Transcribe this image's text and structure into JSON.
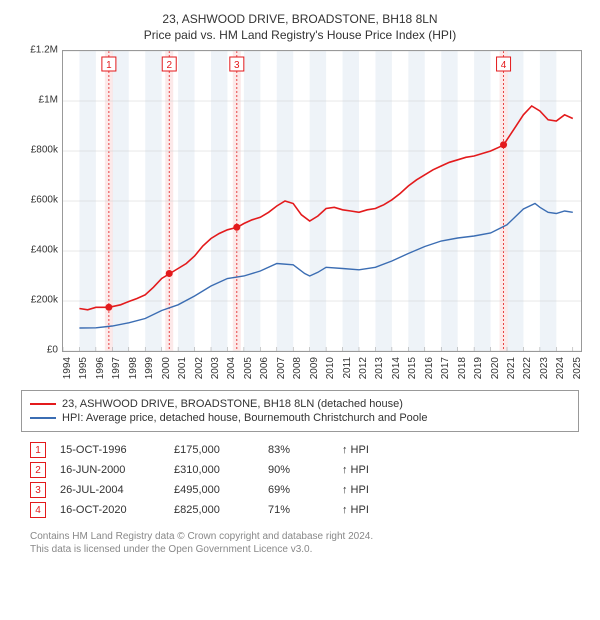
{
  "title": "23, ASHWOOD DRIVE, BROADSTONE, BH18 8LN",
  "subtitle": "Price paid vs. HM Land Registry's House Price Index (HPI)",
  "chart": {
    "type": "line",
    "background_color": "#ffffff",
    "band_color": "#eef3f8",
    "grid_color": "#d0d0d0",
    "border_color": "#999999",
    "x_years": [
      1994,
      1995,
      1996,
      1997,
      1998,
      1999,
      2000,
      2001,
      2002,
      2003,
      2004,
      2005,
      2006,
      2007,
      2008,
      2009,
      2010,
      2011,
      2012,
      2013,
      2014,
      2015,
      2016,
      2017,
      2018,
      2019,
      2020,
      2021,
      2022,
      2023,
      2024,
      2025
    ],
    "x_min": 1994,
    "x_max": 2025.5,
    "y_min": 0,
    "y_max": 1200000,
    "y_ticks": [
      0,
      200000,
      400000,
      600000,
      800000,
      1000000,
      1200000
    ],
    "y_tick_labels": [
      "£0",
      "£200k",
      "£400k",
      "£600k",
      "£800k",
      "£1M",
      "£1.2M"
    ],
    "label_fontsize": 10,
    "series": {
      "property": {
        "label": "23, ASHWOOD DRIVE, BROADSTONE, BH18 8LN (detached house)",
        "color": "#e31a1c",
        "line_width": 1.6,
        "points": [
          [
            1995.0,
            170000
          ],
          [
            1995.5,
            165000
          ],
          [
            1996.0,
            175000
          ],
          [
            1996.8,
            175000
          ],
          [
            1997.5,
            185000
          ],
          [
            1998.0,
            198000
          ],
          [
            1998.5,
            210000
          ],
          [
            1999.0,
            225000
          ],
          [
            1999.5,
            255000
          ],
          [
            2000.0,
            290000
          ],
          [
            2000.5,
            310000
          ],
          [
            2001.0,
            330000
          ],
          [
            2001.5,
            350000
          ],
          [
            2002.0,
            380000
          ],
          [
            2002.5,
            420000
          ],
          [
            2003.0,
            450000
          ],
          [
            2003.5,
            470000
          ],
          [
            2004.0,
            485000
          ],
          [
            2004.6,
            495000
          ],
          [
            2005.0,
            510000
          ],
          [
            2005.5,
            525000
          ],
          [
            2006.0,
            535000
          ],
          [
            2006.5,
            555000
          ],
          [
            2007.0,
            580000
          ],
          [
            2007.5,
            600000
          ],
          [
            2008.0,
            590000
          ],
          [
            2008.5,
            545000
          ],
          [
            2009.0,
            520000
          ],
          [
            2009.5,
            540000
          ],
          [
            2010.0,
            570000
          ],
          [
            2010.5,
            575000
          ],
          [
            2011.0,
            565000
          ],
          [
            2011.5,
            560000
          ],
          [
            2012.0,
            555000
          ],
          [
            2012.5,
            565000
          ],
          [
            2013.0,
            570000
          ],
          [
            2013.5,
            585000
          ],
          [
            2014.0,
            605000
          ],
          [
            2014.5,
            630000
          ],
          [
            2015.0,
            660000
          ],
          [
            2015.5,
            685000
          ],
          [
            2016.0,
            705000
          ],
          [
            2016.5,
            725000
          ],
          [
            2017.0,
            740000
          ],
          [
            2017.5,
            755000
          ],
          [
            2018.0,
            765000
          ],
          [
            2018.5,
            775000
          ],
          [
            2019.0,
            780000
          ],
          [
            2019.5,
            790000
          ],
          [
            2020.0,
            800000
          ],
          [
            2020.5,
            815000
          ],
          [
            2020.8,
            825000
          ],
          [
            2021.0,
            845000
          ],
          [
            2021.5,
            895000
          ],
          [
            2022.0,
            945000
          ],
          [
            2022.5,
            980000
          ],
          [
            2023.0,
            960000
          ],
          [
            2023.5,
            925000
          ],
          [
            2024.0,
            920000
          ],
          [
            2024.5,
            945000
          ],
          [
            2025.0,
            930000
          ]
        ]
      },
      "hpi": {
        "label": "HPI: Average price, detached house, Bournemouth Christchurch and Poole",
        "color": "#3b6db3",
        "line_width": 1.4,
        "points": [
          [
            1995.0,
            92000
          ],
          [
            1996.0,
            93000
          ],
          [
            1997.0,
            100000
          ],
          [
            1998.0,
            113000
          ],
          [
            1999.0,
            130000
          ],
          [
            2000.0,
            162000
          ],
          [
            2001.0,
            185000
          ],
          [
            2002.0,
            220000
          ],
          [
            2003.0,
            260000
          ],
          [
            2004.0,
            290000
          ],
          [
            2005.0,
            300000
          ],
          [
            2006.0,
            320000
          ],
          [
            2007.0,
            350000
          ],
          [
            2008.0,
            345000
          ],
          [
            2008.7,
            310000
          ],
          [
            2009.0,
            300000
          ],
          [
            2009.5,
            315000
          ],
          [
            2010.0,
            335000
          ],
          [
            2011.0,
            330000
          ],
          [
            2012.0,
            325000
          ],
          [
            2013.0,
            335000
          ],
          [
            2014.0,
            360000
          ],
          [
            2015.0,
            390000
          ],
          [
            2016.0,
            418000
          ],
          [
            2017.0,
            440000
          ],
          [
            2018.0,
            452000
          ],
          [
            2019.0,
            460000
          ],
          [
            2020.0,
            472000
          ],
          [
            2021.0,
            505000
          ],
          [
            2022.0,
            568000
          ],
          [
            2022.7,
            590000
          ],
          [
            2023.0,
            575000
          ],
          [
            2023.5,
            555000
          ],
          [
            2024.0,
            550000
          ],
          [
            2024.5,
            560000
          ],
          [
            2025.0,
            555000
          ]
        ]
      }
    },
    "sale_markers": [
      {
        "n": "1",
        "x": 1996.79,
        "y": 175000,
        "color": "#e31a1c"
      },
      {
        "n": "2",
        "x": 2000.46,
        "y": 310000,
        "color": "#e31a1c"
      },
      {
        "n": "3",
        "x": 2004.57,
        "y": 495000,
        "color": "#e31a1c"
      },
      {
        "n": "4",
        "x": 2020.79,
        "y": 825000,
        "color": "#e31a1c"
      }
    ],
    "marker_band_color": "#fbe0e0"
  },
  "legend": [
    {
      "color": "#e31a1c",
      "label": "23, ASHWOOD DRIVE, BROADSTONE, BH18 8LN (detached house)"
    },
    {
      "color": "#3b6db3",
      "label": "HPI: Average price, detached house, Bournemouth Christchurch and Poole"
    }
  ],
  "sales": [
    {
      "n": "1",
      "date": "15-OCT-1996",
      "price": "£175,000",
      "pct": "83%",
      "suffix": "↑ HPI",
      "color": "#e31a1c"
    },
    {
      "n": "2",
      "date": "16-JUN-2000",
      "price": "£310,000",
      "pct": "90%",
      "suffix": "↑ HPI",
      "color": "#e31a1c"
    },
    {
      "n": "3",
      "date": "26-JUL-2004",
      "price": "£495,000",
      "pct": "69%",
      "suffix": "↑ HPI",
      "color": "#e31a1c"
    },
    {
      "n": "4",
      "date": "16-OCT-2020",
      "price": "£825,000",
      "pct": "71%",
      "suffix": "↑ HPI",
      "color": "#e31a1c"
    }
  ],
  "footer_lines": [
    "Contains HM Land Registry data © Crown copyright and database right 2024.",
    "This data is licensed under the Open Government Licence v3.0."
  ]
}
